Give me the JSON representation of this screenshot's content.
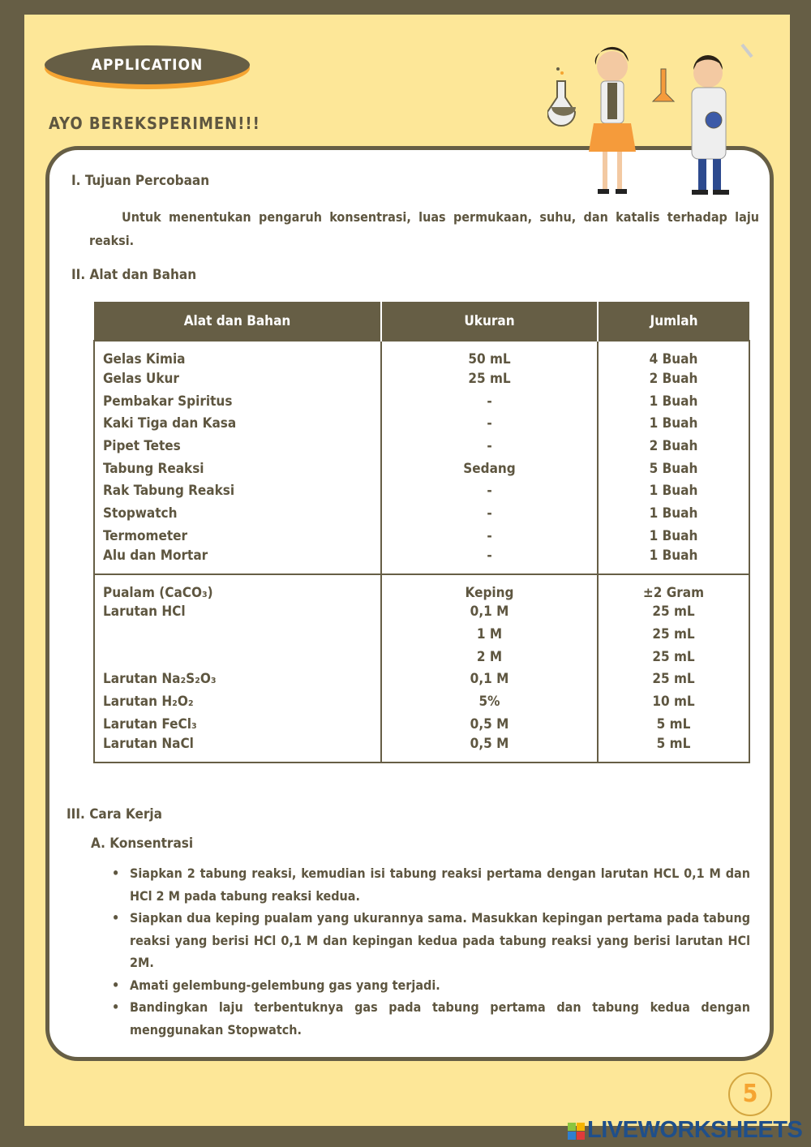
{
  "header": {
    "badge": "APPLICATION",
    "subtitle": "AYO BEREKSPERIMEN!!!"
  },
  "section1": {
    "title": "I. Tujuan Percobaan",
    "text": "Untuk menentukan pengaruh konsentrasi, luas permukaan, suhu, dan katalis terhadap laju reaksi."
  },
  "section2": {
    "title": "II. Alat dan Bahan",
    "headers": [
      "Alat dan Bahan",
      "Ukuran",
      "Jumlah"
    ],
    "alat": [
      [
        "Gelas Kimia",
        "50 mL",
        "4 Buah"
      ],
      [
        "Gelas Ukur",
        "25 mL",
        "2 Buah"
      ],
      [
        "Pembakar Spiritus",
        "-",
        "1 Buah"
      ],
      [
        "Kaki Tiga dan Kasa",
        "-",
        "1 Buah"
      ],
      [
        "Pipet Tetes",
        "-",
        "2 Buah"
      ],
      [
        "Tabung Reaksi",
        "Sedang",
        "5 Buah"
      ],
      [
        "Rak Tabung Reaksi",
        "-",
        "1 Buah"
      ],
      [
        "Stopwatch",
        "-",
        "1 Buah"
      ],
      [
        "Termometer",
        "-",
        "1 Buah"
      ],
      [
        "Alu dan Mortar",
        "-",
        "1 Buah"
      ]
    ],
    "bahan": [
      [
        "Pualam (CaCO₃)",
        "Keping",
        "±2 Gram"
      ],
      [
        "Larutan HCl",
        "0,1 M",
        "25 mL"
      ],
      [
        "",
        "1 M",
        "25 mL"
      ],
      [
        "",
        "2 M",
        "25 mL"
      ],
      [
        "Larutan Na₂S₂O₃",
        "0,1 M",
        "25 mL"
      ],
      [
        "Larutan H₂O₂",
        "5%",
        "10 mL"
      ],
      [
        "Larutan FeCl₃",
        "0,5 M",
        "5 mL"
      ],
      [
        "Larutan NaCl",
        "0,5 M",
        "5 mL"
      ]
    ]
  },
  "section3": {
    "title": "III. Cara Kerja",
    "sub": "A. Konsentrasi",
    "steps": [
      "Siapkan 2 tabung reaksi, kemudian isi tabung reaksi pertama dengan larutan HCL 0,1 M dan HCl 2 M pada tabung reaksi kedua.",
      "Siapkan dua keping pualam yang ukurannya sama. Masukkan kepingan pertama pada tabung reaksi yang berisi HCl 0,1 M dan kepingan kedua pada tabung reaksi yang berisi larutan HCl 2M.",
      "Amati gelembung-gelembung gas yang terjadi.",
      "Bandingkan laju terbentuknya gas pada tabung pertama dan tabung kedua dengan menggunakan Stopwatch."
    ]
  },
  "footer": {
    "page_number": "5",
    "watermark": "LIVEWORKSHEETS",
    "logo_letters": [
      "L",
      "I",
      "V",
      "E"
    ]
  },
  "colors": {
    "frame": "#665e45",
    "background": "#fde798",
    "accent": "#f5a431",
    "watermark": "#1f4f8a"
  }
}
